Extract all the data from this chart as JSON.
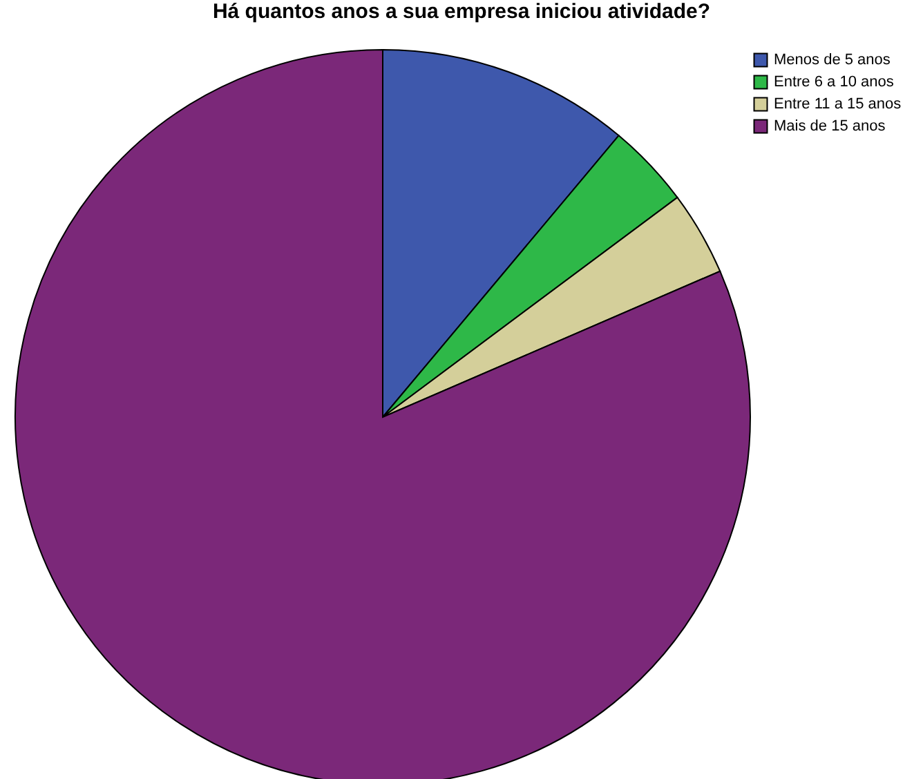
{
  "chart_data": {
    "type": "pie",
    "title": "Há quantos anos a sua empresa iniciou atividade?",
    "categories": [
      "Menos de 5 anos",
      "Entre 6 a 10 anos",
      "Entre 11 a 15 anos",
      "Mais de 15 anos"
    ],
    "values": [
      11.1,
      3.7,
      3.7,
      81.5
    ],
    "colors": [
      "#3e58ac",
      "#2eb848",
      "#d4cf9a",
      "#7b2879"
    ],
    "legend": "top right"
  }
}
